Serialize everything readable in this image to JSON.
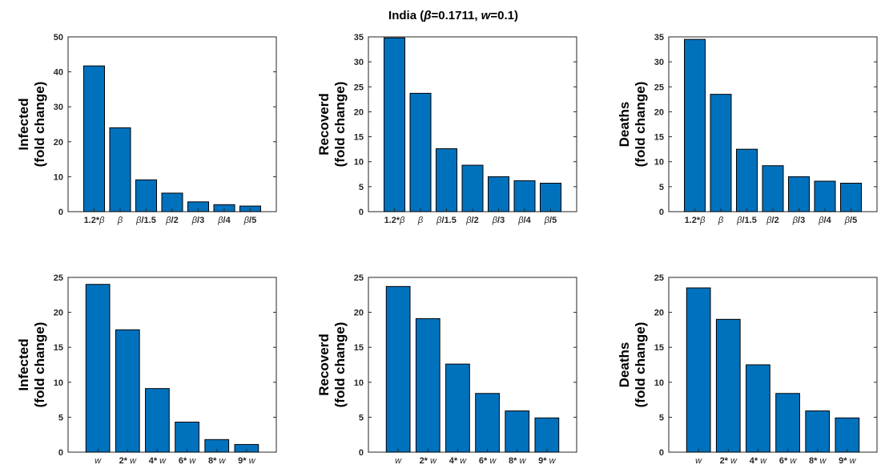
{
  "figure": {
    "title_parts": [
      "India (",
      "β",
      "=0.1711, ",
      "w",
      "=0.1)"
    ]
  },
  "colors": {
    "bar": "#0072BD",
    "axis": "#262626"
  },
  "chart_data": [
    {
      "type": "bar",
      "ylabel": [
        "Infected",
        "(fold change)"
      ],
      "ylim": [
        0,
        50
      ],
      "yticks": [
        0,
        10,
        20,
        30,
        40,
        50
      ],
      "categories": [
        [
          "1.2*",
          "β"
        ],
        [
          "",
          "β"
        ],
        [
          "",
          "β",
          "/1.5"
        ],
        [
          "",
          "β",
          "/2"
        ],
        [
          "",
          "β",
          "/3"
        ],
        [
          "",
          "β",
          "/4"
        ],
        [
          "",
          "β",
          "/5"
        ]
      ],
      "values": [
        41.7,
        24.0,
        9.1,
        5.3,
        2.8,
        2.0,
        1.6
      ]
    },
    {
      "type": "bar",
      "ylabel": [
        "Recoverd",
        "(fold change)"
      ],
      "ylim": [
        0,
        35
      ],
      "yticks": [
        0,
        5,
        10,
        15,
        20,
        25,
        30,
        35
      ],
      "categories": [
        [
          "1.2*",
          "β"
        ],
        [
          "",
          "β"
        ],
        [
          "",
          "β",
          "/1.5"
        ],
        [
          "",
          "β",
          "/2"
        ],
        [
          "",
          "β",
          "/3"
        ],
        [
          "",
          "β",
          "/4"
        ],
        [
          "",
          "β",
          "/5"
        ]
      ],
      "values": [
        34.8,
        23.7,
        12.6,
        9.3,
        7.0,
        6.2,
        5.7
      ]
    },
    {
      "type": "bar",
      "ylabel": [
        "Deaths",
        "(fold change)"
      ],
      "ylim": [
        0,
        35
      ],
      "yticks": [
        0,
        5,
        10,
        15,
        20,
        25,
        30,
        35
      ],
      "categories": [
        [
          "1.2*",
          "β"
        ],
        [
          "",
          "β"
        ],
        [
          "",
          "β",
          "/1.5"
        ],
        [
          "",
          "β",
          "/2"
        ],
        [
          "",
          "β",
          "/3"
        ],
        [
          "",
          "β",
          "/4"
        ],
        [
          "",
          "β",
          "/5"
        ]
      ],
      "values": [
        34.5,
        23.5,
        12.5,
        9.2,
        7.0,
        6.1,
        5.7
      ]
    },
    {
      "type": "bar",
      "ylabel": [
        "Infected",
        "(fold change)"
      ],
      "ylim": [
        0,
        25
      ],
      "yticks": [
        0,
        5,
        10,
        15,
        20,
        25
      ],
      "categories": [
        [
          "",
          "w"
        ],
        [
          "2* ",
          "w"
        ],
        [
          "4* ",
          "w"
        ],
        [
          "6* ",
          "w"
        ],
        [
          "8* ",
          "w"
        ],
        [
          "9* ",
          "w"
        ]
      ],
      "values": [
        24.0,
        17.5,
        9.1,
        4.3,
        1.8,
        1.1
      ]
    },
    {
      "type": "bar",
      "ylabel": [
        "Recoverd",
        "(fold change)"
      ],
      "ylim": [
        0,
        25
      ],
      "yticks": [
        0,
        5,
        10,
        15,
        20,
        25
      ],
      "categories": [
        [
          "",
          "w"
        ],
        [
          "2* ",
          "w"
        ],
        [
          "4* ",
          "w"
        ],
        [
          "6* ",
          "w"
        ],
        [
          "8* ",
          "w"
        ],
        [
          "9* ",
          "w"
        ]
      ],
      "values": [
        23.7,
        19.1,
        12.6,
        8.4,
        5.9,
        4.9
      ]
    },
    {
      "type": "bar",
      "ylabel": [
        "Deaths",
        "(fold change)"
      ],
      "ylim": [
        0,
        25
      ],
      "yticks": [
        0,
        5,
        10,
        15,
        20,
        25
      ],
      "categories": [
        [
          "",
          "w"
        ],
        [
          "2* ",
          "w"
        ],
        [
          "4* ",
          "w"
        ],
        [
          "6* ",
          "w"
        ],
        [
          "8* ",
          "w"
        ],
        [
          "9* ",
          "w"
        ]
      ],
      "values": [
        23.5,
        19.0,
        12.5,
        8.4,
        5.9,
        4.9
      ]
    }
  ]
}
